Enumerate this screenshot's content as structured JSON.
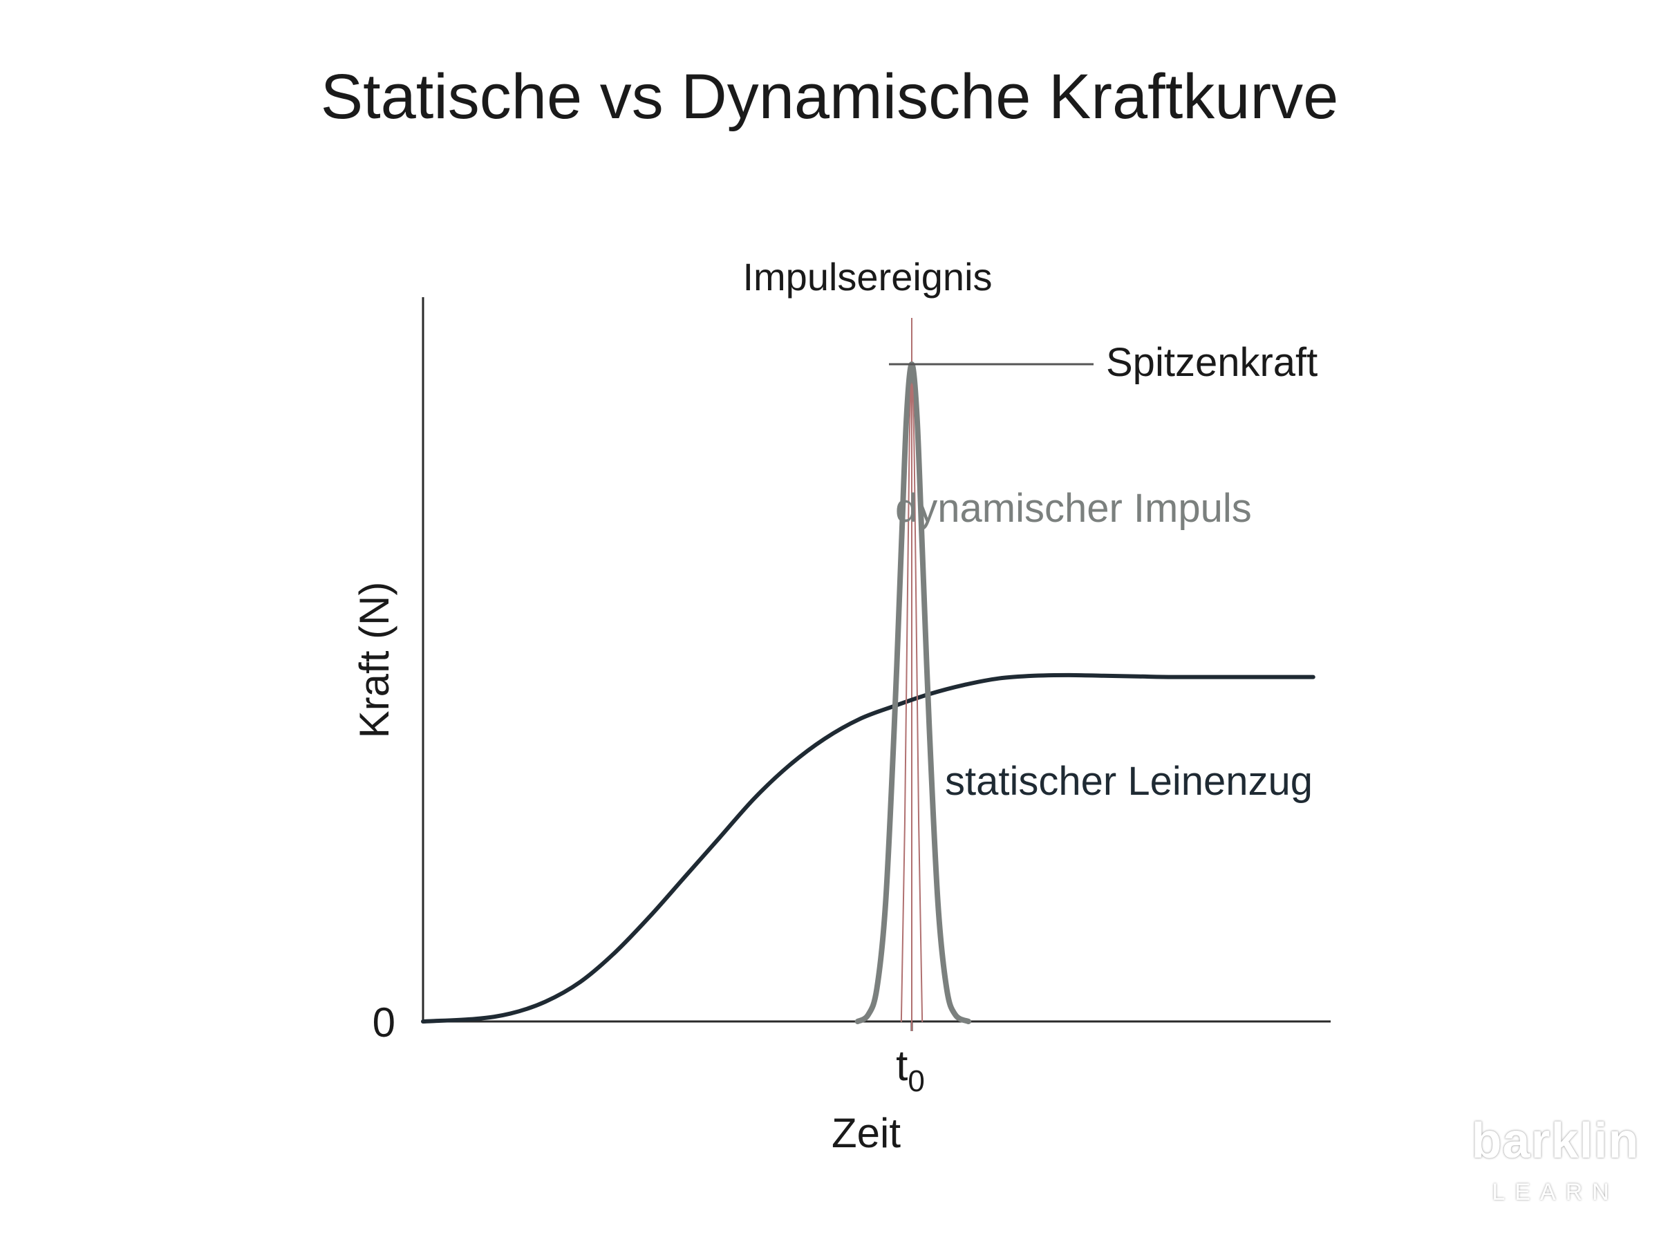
{
  "page": {
    "title": "Statische vs Dynamische Kraftkurve"
  },
  "chart_data": {
    "type": "line",
    "title": "Statische vs Dynamische Kraftkurve",
    "xlabel": "Zeit",
    "ylabel": "Kraft (N)",
    "x_ticks": [
      {
        "x": 0,
        "sub": "0",
        "base": "t"
      }
    ],
    "y_ticks": [
      {
        "y": 0,
        "label": "0"
      }
    ],
    "xlim": [
      -5.6,
      4.8
    ],
    "ylim": [
      0,
      1.05
    ],
    "grid": false,
    "series": [
      {
        "name": "statischer Leinenzug",
        "color": "#1f2a33",
        "points": [
          [
            -5.6,
            0
          ],
          [
            -5.0,
            0.004
          ],
          [
            -4.6,
            0.012
          ],
          [
            -4.2,
            0.03
          ],
          [
            -3.8,
            0.06
          ],
          [
            -3.4,
            0.105
          ],
          [
            -3.0,
            0.16
          ],
          [
            -2.6,
            0.22
          ],
          [
            -2.2,
            0.28
          ],
          [
            -1.8,
            0.34
          ],
          [
            -1.4,
            0.39
          ],
          [
            -1.0,
            0.43
          ],
          [
            -0.6,
            0.46
          ],
          [
            -0.2,
            0.48
          ],
          [
            0.2,
            0.498
          ],
          [
            0.6,
            0.512
          ],
          [
            1.0,
            0.522
          ],
          [
            1.4,
            0.526
          ],
          [
            1.8,
            0.527
          ],
          [
            2.2,
            0.526
          ],
          [
            2.6,
            0.525
          ],
          [
            3.0,
            0.524
          ],
          [
            3.6,
            0.524
          ],
          [
            4.6,
            0.524
          ]
        ]
      },
      {
        "name": "dynamischer Impuls",
        "color": "#7b807e",
        "points": [
          [
            -0.62,
            0
          ],
          [
            -0.5,
            0.01
          ],
          [
            -0.4,
            0.05
          ],
          [
            -0.3,
            0.18
          ],
          [
            -0.2,
            0.45
          ],
          [
            -0.12,
            0.72
          ],
          [
            -0.06,
            0.92
          ],
          [
            0,
            1.0
          ],
          [
            0.06,
            0.92
          ],
          [
            0.12,
            0.72
          ],
          [
            0.2,
            0.45
          ],
          [
            0.3,
            0.18
          ],
          [
            0.4,
            0.05
          ],
          [
            0.5,
            0.01
          ],
          [
            0.65,
            0
          ]
        ]
      },
      {
        "name": "",
        "color": "#b07070",
        "points": [
          [
            -0.12,
            0
          ],
          [
            -0.08,
            0.3
          ],
          [
            -0.03,
            0.85
          ],
          [
            0,
            0.97
          ],
          [
            0.03,
            0.85
          ],
          [
            0.08,
            0.3
          ],
          [
            0.12,
            0
          ]
        ]
      }
    ],
    "reference_line": {
      "x": 0,
      "color": "#b07070"
    },
    "annotations": [
      {
        "text": "Impulsereignis",
        "target": "Spitzenkraft-Linie"
      },
      {
        "text": "Spitzenkraft",
        "target": "peak"
      },
      {
        "text": "dynamischer Impuls",
        "color": "#7b807e"
      },
      {
        "text": "statischer Leinenzug",
        "color": "#1f2a33"
      }
    ]
  },
  "logo": {
    "word": "barklin",
    "sub": "LEARN"
  }
}
